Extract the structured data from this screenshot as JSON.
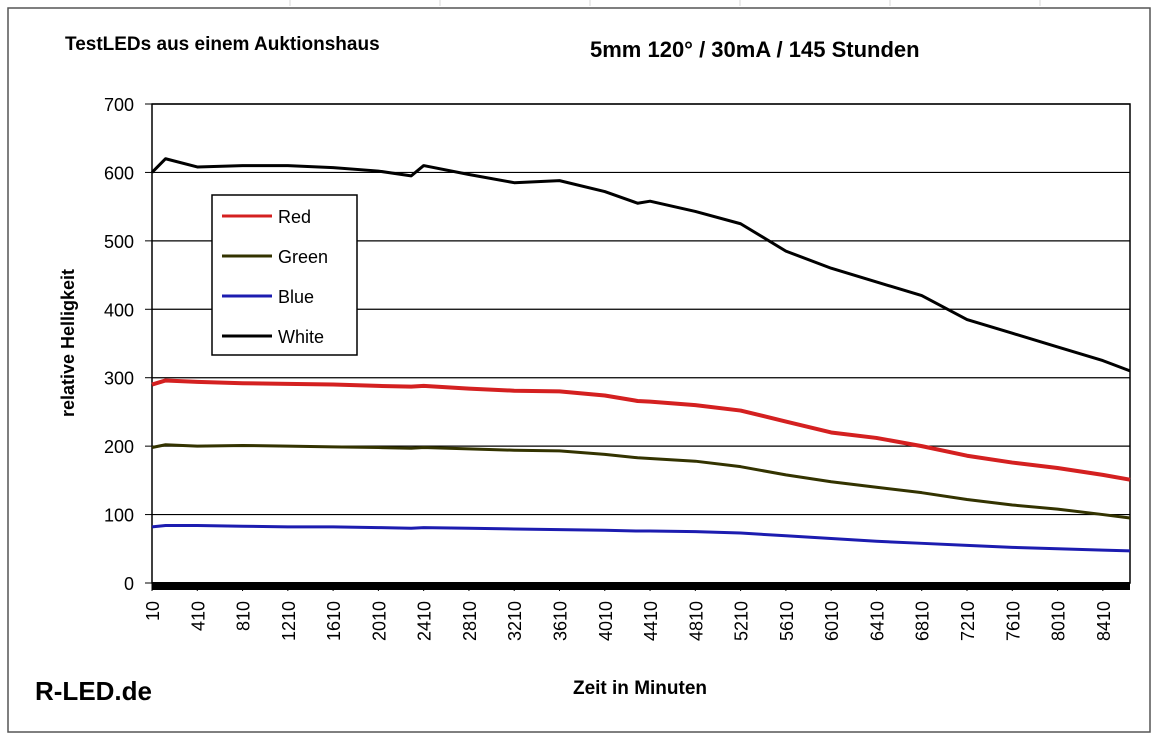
{
  "chart_data": {
    "type": "line",
    "title": "TestLEDs aus einem Auktionshaus",
    "subtitle": "5mm 120° / 30mA / 145 Stunden",
    "annotation": "R-LED.de",
    "xlabel": "Zeit in Minuten",
    "ylabel": "relative Helligkeit",
    "x": [
      10,
      130,
      410,
      810,
      1210,
      1610,
      2010,
      2300,
      2410,
      2810,
      3210,
      3610,
      4010,
      4300,
      4410,
      4810,
      5210,
      5610,
      6010,
      6410,
      6810,
      7210,
      7610,
      8010,
      8410,
      8650
    ],
    "series": [
      {
        "name": "Red",
        "color": "#d42020",
        "values": [
          290,
          296,
          294,
          292,
          291,
          290,
          288,
          287,
          288,
          284,
          281,
          280,
          274,
          266,
          265,
          260,
          252,
          236,
          220,
          212,
          200,
          186,
          176,
          168,
          158,
          151
        ]
      },
      {
        "name": "Green",
        "color": "#333300",
        "values": [
          198,
          202,
          200,
          201,
          200,
          199,
          198,
          197,
          198,
          196,
          194,
          193,
          188,
          183,
          182,
          178,
          170,
          158,
          148,
          140,
          132,
          122,
          114,
          108,
          100,
          95
        ]
      },
      {
        "name": "Blue",
        "color": "#1c1cb0",
        "values": [
          82,
          84,
          84,
          83,
          82,
          82,
          81,
          80,
          81,
          80,
          79,
          78,
          77,
          76,
          76,
          75,
          73,
          69,
          65,
          61,
          58,
          55,
          52,
          50,
          48,
          47
        ]
      },
      {
        "name": "White",
        "color": "#000000",
        "values": [
          600,
          620,
          608,
          610,
          610,
          607,
          602,
          595,
          610,
          597,
          585,
          588,
          572,
          555,
          558,
          543,
          525,
          485,
          460,
          440,
          420,
          385,
          365,
          345,
          325,
          310
        ]
      }
    ],
    "xlim": [
      10,
      8650
    ],
    "xticks": [
      10,
      410,
      810,
      1210,
      1610,
      2010,
      2410,
      2810,
      3210,
      3610,
      4010,
      4410,
      4810,
      5210,
      5610,
      6010,
      6410,
      6810,
      7210,
      7610,
      8010,
      8410
    ],
    "ylim": [
      0,
      700
    ],
    "yticks": [
      0,
      100,
      200,
      300,
      400,
      500,
      600,
      700
    ],
    "grid": true,
    "legend": "upper left"
  }
}
